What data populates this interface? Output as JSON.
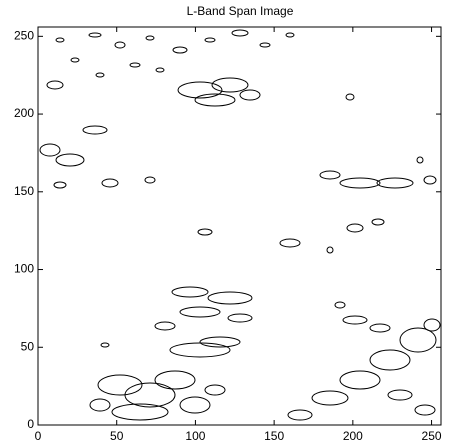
{
  "chart_data": {
    "type": "contour",
    "title": "L-Band Span Image",
    "xlim": [
      0,
      256
    ],
    "ylim": [
      0,
      256
    ],
    "xticks": [
      0,
      50,
      100,
      150,
      200,
      250
    ],
    "yticks": [
      0,
      50,
      100,
      150,
      200,
      250
    ],
    "color": "#000000"
  }
}
